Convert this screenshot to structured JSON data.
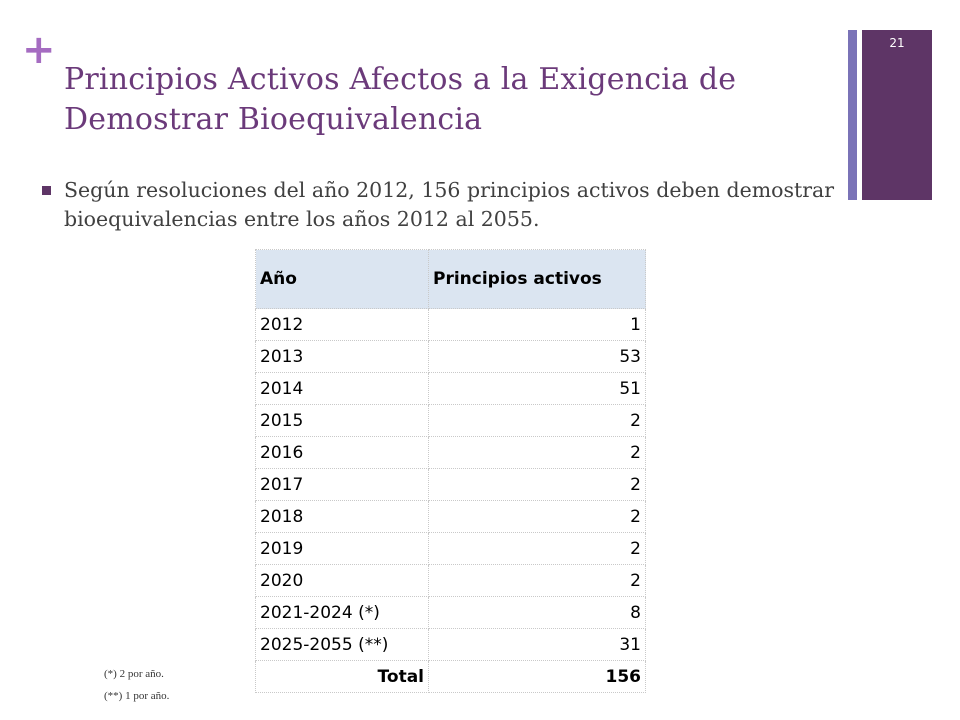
{
  "slide": {
    "number": "21",
    "plus_symbol": "+",
    "title": "Principios Activos Afectos a la Exigencia de Demostrar Bioequivalencia",
    "bullet": "Según resoluciones del año 2012, 156 principios activos deben demostrar bioequivalencias entre los años 2012 al 2055.",
    "colors": {
      "title": "#6b3a7a",
      "plus": "#a56cc1",
      "sidebar": "#5e3566",
      "sidebar_thin": "#7a73b7",
      "table_header": "#dbe5f1"
    }
  },
  "table": {
    "headers": [
      "Año",
      "Principios activos"
    ],
    "rows": [
      {
        "year": "2012",
        "count": "1"
      },
      {
        "year": "2013",
        "count": "53"
      },
      {
        "year": "2014",
        "count": "51"
      },
      {
        "year": "2015",
        "count": "2"
      },
      {
        "year": "2016",
        "count": "2"
      },
      {
        "year": "2017",
        "count": "2"
      },
      {
        "year": "2018",
        "count": "2"
      },
      {
        "year": "2019",
        "count": "2"
      },
      {
        "year": "2020",
        "count": "2"
      },
      {
        "year": "2021-2024 (*)",
        "count": "8"
      },
      {
        "year": "2025-2055 (**)",
        "count": "31"
      }
    ],
    "total": {
      "label": "Total",
      "value": "156"
    }
  },
  "footnotes": [
    "(*)   2 por año.",
    "(**)  1 por año."
  ]
}
